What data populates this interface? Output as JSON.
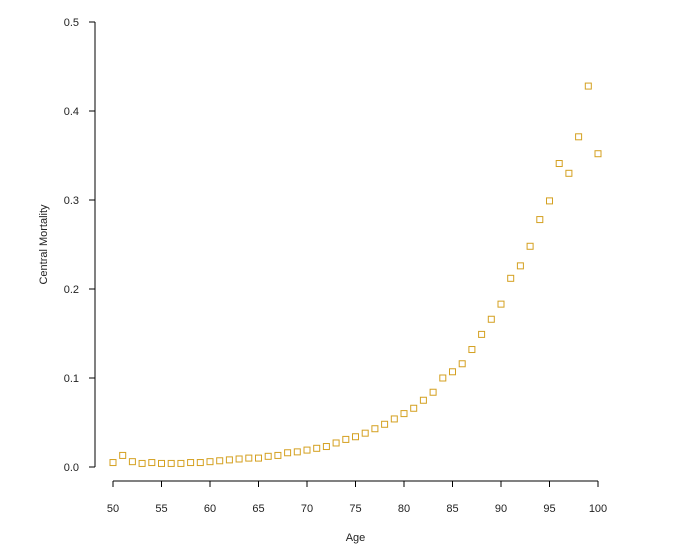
{
  "chart_data": {
    "type": "scatter",
    "title": "",
    "xlabel": "Age",
    "ylabel": "Central Mortality",
    "xlim": [
      50,
      100
    ],
    "ylim": [
      0,
      0.5
    ],
    "xticks": [
      50,
      55,
      60,
      65,
      70,
      75,
      80,
      85,
      90,
      95,
      100
    ],
    "yticks": [
      0.0,
      0.1,
      0.2,
      0.3,
      0.4,
      0.5
    ],
    "ytick_labels": [
      "0.0",
      "0.1",
      "0.2",
      "0.3",
      "0.4",
      "0.5"
    ],
    "marker": "open-square",
    "color": "#D4A020",
    "grid": false,
    "series": [
      {
        "x": [
          50,
          51,
          52,
          53,
          54,
          55,
          56,
          57,
          58,
          59,
          60,
          61,
          62,
          63,
          64,
          65,
          66,
          67,
          68,
          69,
          70,
          71,
          72,
          73,
          74,
          75,
          76,
          77,
          78,
          79,
          80,
          81,
          82,
          83,
          84,
          85,
          86,
          87,
          88,
          89,
          90,
          91,
          92,
          93,
          94,
          95,
          96,
          97,
          98,
          99,
          100
        ],
        "y": [
          0.005,
          0.013,
          0.006,
          0.004,
          0.005,
          0.004,
          0.004,
          0.004,
          0.005,
          0.005,
          0.006,
          0.007,
          0.008,
          0.009,
          0.01,
          0.01,
          0.012,
          0.013,
          0.016,
          0.017,
          0.019,
          0.021,
          0.023,
          0.027,
          0.031,
          0.034,
          0.038,
          0.043,
          0.048,
          0.054,
          0.06,
          0.066,
          0.075,
          0.084,
          0.1,
          0.107,
          0.116,
          0.132,
          0.149,
          0.166,
          0.183,
          0.212,
          0.226,
          0.248,
          0.278,
          0.299,
          0.341,
          0.33,
          0.371,
          0.428,
          0.352
        ]
      }
    ]
  }
}
